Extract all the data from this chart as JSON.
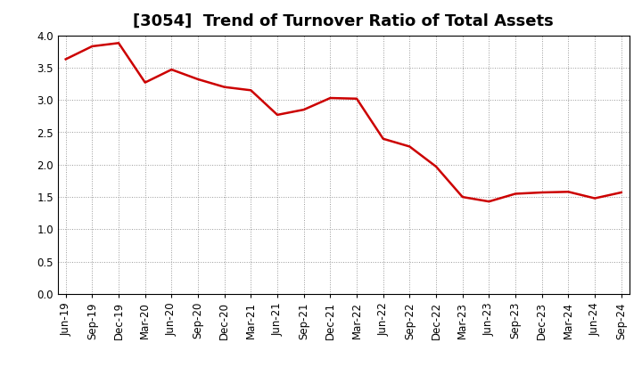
{
  "title": "[3054]  Trend of Turnover Ratio of Total Assets",
  "x_labels": [
    "Jun-19",
    "Sep-19",
    "Dec-19",
    "Mar-20",
    "Jun-20",
    "Sep-20",
    "Dec-20",
    "Mar-21",
    "Jun-21",
    "Sep-21",
    "Dec-21",
    "Mar-22",
    "Jun-22",
    "Sep-22",
    "Dec-22",
    "Mar-23",
    "Jun-23",
    "Sep-23",
    "Dec-23",
    "Mar-24",
    "Jun-24",
    "Sep-24"
  ],
  "values": [
    3.63,
    3.83,
    3.88,
    3.27,
    3.47,
    3.32,
    3.2,
    3.15,
    2.77,
    2.85,
    3.03,
    3.02,
    2.4,
    2.28,
    1.97,
    1.5,
    1.43,
    1.55,
    1.57,
    1.58,
    1.48,
    1.57
  ],
  "line_color": "#cc0000",
  "line_width": 1.8,
  "ylim": [
    0.0,
    4.0
  ],
  "yticks": [
    0.0,
    0.5,
    1.0,
    1.5,
    2.0,
    2.5,
    3.0,
    3.5,
    4.0
  ],
  "grid_color": "#999999",
  "background_color": "#ffffff",
  "title_fontsize": 13,
  "tick_fontsize": 8.5,
  "fig_width": 7.2,
  "fig_height": 4.4,
  "dpi": 100
}
